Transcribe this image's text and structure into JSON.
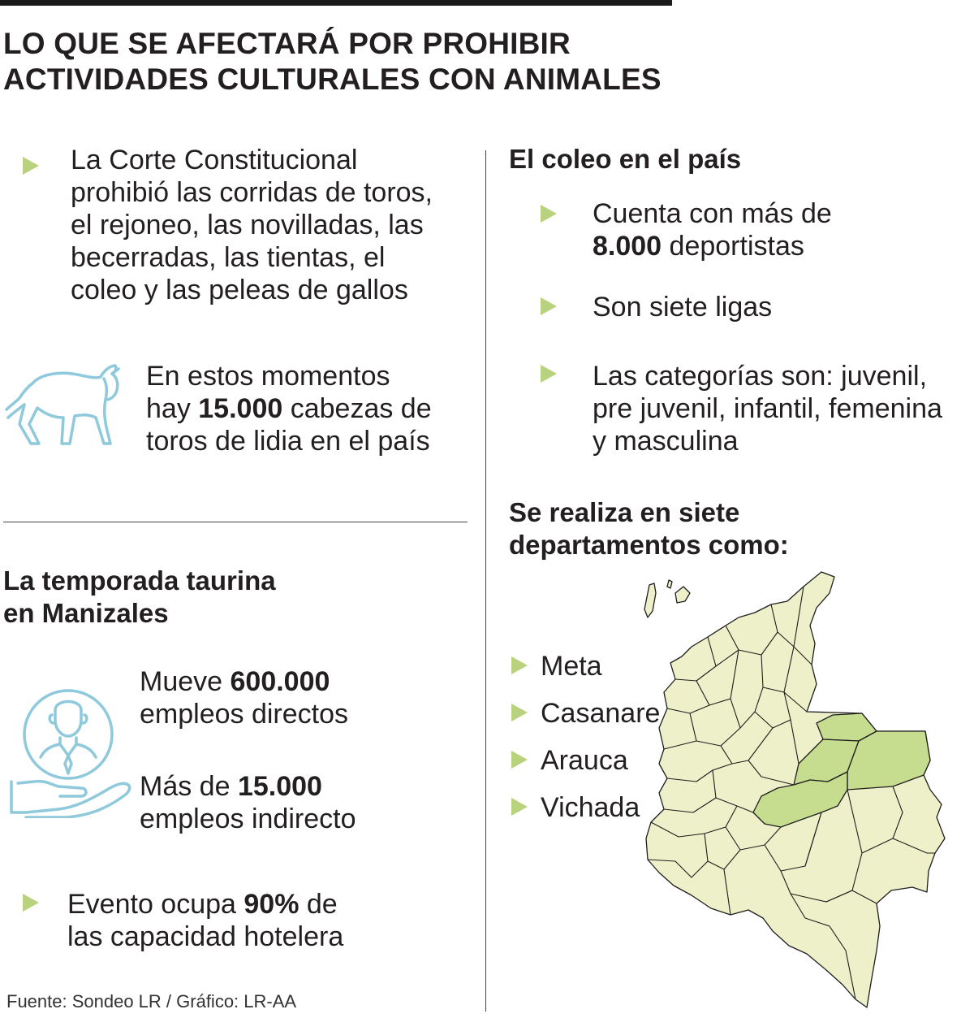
{
  "title": {
    "line1": "LO QUE SE AFECTARÁ POR PROHIBIR",
    "line2": "ACTIVIDADES CULTURALES CON ANIMALES"
  },
  "left": {
    "prohibition": {
      "line1": "La Corte Constitucional",
      "line2": "prohibió las corridas de toros,",
      "line3": "el rejoneo, las novilladas, las",
      "line4": "becerradas, las tientas, el",
      "line5": "coleo y las peleas de gallos"
    },
    "bulls": {
      "line1": "En estos momentos",
      "line2_pre": "hay ",
      "line2_num": "15.000",
      "line2_post": " cabezas de",
      "line3": "toros de lidia en el país"
    },
    "season": {
      "heading1": "La temporada taurina",
      "heading2": "en Manizales",
      "direct_pre": "Mueve ",
      "direct_num": "600.000",
      "direct_line2": "empleos directos",
      "indirect_pre": "Más de ",
      "indirect_num": "15.000",
      "indirect_line2": "empleos indirecto",
      "hotel_pre": "Evento ocupa ",
      "hotel_num": "90%",
      "hotel_post": " de",
      "hotel_line2": "las capacidad hotelera"
    }
  },
  "right": {
    "heading": "El coleo en el país",
    "athletes_line1": "Cuenta con más de",
    "athletes_num": "8.000",
    "athletes_post": " deportistas",
    "leagues": "Son siete ligas",
    "categories_line1": "Las categorías son: juvenil,",
    "categories_line2": "pre juvenil, infantil, femenina",
    "categories_line3": "y masculina",
    "departments_heading1": "Se realiza en siete",
    "departments_heading2": "departamentos como:",
    "departments": [
      "Meta",
      "Casanare",
      "Arauca",
      "Vichada"
    ]
  },
  "source": "Fuente: Sondeo LR / Gráfico: LR-AA",
  "colors": {
    "bullet": "#b9d27e",
    "icon": "#8ec9dc",
    "map_fill": "#eef0c9",
    "map_highlight": "#c6dc8e",
    "map_stroke": "#1e1e1e"
  },
  "icons": [
    "bull-icon",
    "worker-hand-icon",
    "colombia-map"
  ]
}
